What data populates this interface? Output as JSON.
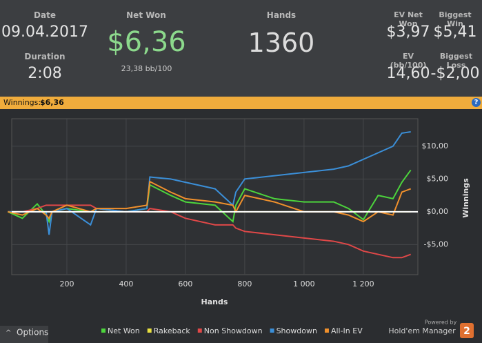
{
  "header": {
    "date_label": "Date",
    "date": "09.04.2017",
    "duration_label": "Duration",
    "duration": "2:08",
    "net_won_label": "Net Won",
    "net_won": "$6,36",
    "net_won_sub": "23,38 bb/100",
    "hands_label": "Hands",
    "hands": "1360",
    "ev_net_won_label": "EV Net Won",
    "ev_net_won": "$3,97",
    "biggest_win_label": "Biggest Win",
    "biggest_win": "$5,41",
    "ev_bb_label": "EV (bb/100)",
    "ev_bb": "14,60",
    "biggest_loss_label": "Biggest Loss",
    "biggest_loss": "-$2,00"
  },
  "winnings_bar": {
    "label": "Winnings:",
    "value": "$6,36",
    "help": "?"
  },
  "footer": {
    "options": "Options",
    "powered_by": "Powered by",
    "brand": "Hold'em Manager",
    "brand_version": "2"
  },
  "chart_data": {
    "type": "line",
    "xlabel": "Hands",
    "ylabel": "Winnings",
    "x": [
      1,
      50,
      100,
      130,
      140,
      150,
      200,
      280,
      300,
      400,
      470,
      480,
      550,
      600,
      700,
      760,
      770,
      800,
      900,
      1000,
      1100,
      1150,
      1200,
      1250,
      1300,
      1330,
      1360
    ],
    "series": [
      {
        "name": "Net Won",
        "color": "#4cd43c",
        "values": [
          0,
          -1,
          1.2,
          -0.5,
          -1.5,
          0,
          0.5,
          0,
          0.5,
          0,
          0.5,
          4.1,
          2.5,
          1.5,
          1,
          -1.5,
          1,
          3.5,
          2,
          1.5,
          1.5,
          0.5,
          -1.2,
          2.5,
          2,
          4.5,
          6.36
        ]
      },
      {
        "name": "Rakeback",
        "color": "#e8e040",
        "values": [
          0,
          0,
          0,
          0,
          0,
          0,
          0,
          0,
          0,
          0,
          0,
          0,
          0,
          0,
          0,
          0,
          0,
          0,
          0,
          0,
          0,
          0,
          0,
          0,
          0,
          0,
          0
        ]
      },
      {
        "name": "Non Showdown",
        "color": "#e04848",
        "values": [
          0,
          0,
          0.5,
          1,
          1,
          1,
          1,
          1,
          0.5,
          0,
          0,
          0.5,
          0,
          -1,
          -2,
          -2,
          -2.5,
          -3,
          -3.5,
          -4,
          -4.5,
          -5,
          -6,
          -6.5,
          -7,
          -7,
          -6.5
        ]
      },
      {
        "name": "Showdown",
        "color": "#3b8fd8",
        "values": [
          0,
          0,
          0,
          0,
          -3.5,
          0,
          0.5,
          -2,
          0.5,
          0,
          0.5,
          5.3,
          5,
          4.5,
          3.5,
          1,
          3,
          5,
          5.5,
          6,
          6.5,
          7,
          8,
          9,
          10,
          12,
          12.2
        ]
      },
      {
        "name": "All-In EV",
        "color": "#f0902c",
        "values": [
          0,
          -0.5,
          0.5,
          -0.5,
          -1,
          0,
          1,
          0,
          0.5,
          0.5,
          1,
          4.6,
          3,
          2,
          1.5,
          1,
          0,
          2.5,
          1.5,
          0,
          0,
          -0.5,
          -1.5,
          0,
          -0.5,
          3,
          3.5
        ]
      }
    ],
    "xlim": [
      14,
      1384
    ],
    "xticks": [
      200,
      400,
      600,
      800,
      {
        "value": 1000,
        "label": "1 000"
      },
      {
        "value": 1200,
        "label": "1 200"
      }
    ],
    "ylim": [
      -9.6,
      14.2
    ],
    "yticks": [
      {
        "value": -5,
        "label": "-$5,00"
      },
      {
        "value": 0,
        "label": "$0,00"
      },
      {
        "value": 5,
        "label": "$5,00"
      },
      {
        "value": 10,
        "label": "$10,00"
      }
    ],
    "grid": true
  }
}
